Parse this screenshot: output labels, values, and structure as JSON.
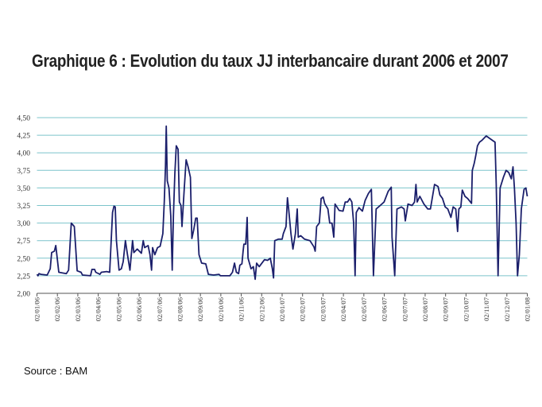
{
  "chart_data": {
    "type": "line",
    "title": "Graphique 6 : Evolution du taux JJ interbancaire durant 2006 et 2007",
    "source": "Source : BAM",
    "xlabel": "",
    "ylabel": "",
    "ylim": [
      2.0,
      4.5
    ],
    "yticks": [
      "2,00",
      "2,25",
      "2,50",
      "2,75",
      "3,00",
      "3,25",
      "3,50",
      "3,75",
      "4,00",
      "4,25",
      "4,50"
    ],
    "ytick_values": [
      2.0,
      2.25,
      2.5,
      2.75,
      3.0,
      3.25,
      3.5,
      3.75,
      4.0,
      4.25,
      4.5
    ],
    "xticks": [
      "02/01/06",
      "02/02/06",
      "02/03/06",
      "02/04/06",
      "02/05/06",
      "02/06/06",
      "02/07/06",
      "02/08/06",
      "02/09/06",
      "02/10/06",
      "02/11/06",
      "02/12/06",
      "02/01/07",
      "02/02/07",
      "02/03/07",
      "02/04/07",
      "02/05/07",
      "02/06/07",
      "02/07/07",
      "02/08/07",
      "02/09/07",
      "02/10/07",
      "02/11/07",
      "02/12/07",
      "02/01/08"
    ],
    "x_unit": "months since 02/01/06",
    "xlim": [
      0,
      24
    ],
    "grid": "horizontal",
    "colors": {
      "line": "#1b1f6b",
      "grid": "#7cc4cb"
    },
    "series": [
      {
        "name": "Taux JJ interbancaire",
        "x": [
          0,
          0.05,
          0.1,
          0.2,
          0.5,
          0.65,
          0.72,
          0.85,
          0.92,
          1.07,
          1.44,
          1.55,
          1.68,
          1.83,
          1.97,
          2.16,
          2.23,
          2.62,
          2.69,
          2.82,
          2.88,
          3.08,
          3.15,
          3.41,
          3.56,
          3.7,
          3.77,
          3.83,
          3.89,
          4.02,
          4.13,
          4.22,
          4.33,
          4.43,
          4.55,
          4.68,
          4.74,
          4.91,
          5.11,
          5.2,
          5.27,
          5.44,
          5.53,
          5.61,
          5.66,
          5.77,
          5.9,
          6.03,
          6.16,
          6.23,
          6.29,
          6.33,
          6.38,
          6.46,
          6.55,
          6.62,
          6.68,
          6.75,
          6.82,
          6.91,
          6.97,
          7.05,
          7.1,
          7.21,
          7.3,
          7.4,
          7.51,
          7.58,
          7.67,
          7.77,
          7.84,
          7.93,
          8.06,
          8.26,
          8.39,
          8.65,
          8.91,
          8.98,
          9.44,
          9.57,
          9.67,
          9.76,
          9.87,
          9.93,
          10.03,
          10.09,
          10.13,
          10.22,
          10.29,
          10.33,
          10.48,
          10.59,
          10.68,
          10.75,
          10.88,
          11.14,
          11.29,
          11.42,
          11.52,
          11.58,
          11.64,
          11.81,
          12.0,
          12.06,
          12.19,
          12.26,
          12.32,
          12.43,
          12.53,
          12.65,
          12.74,
          12.79,
          12.91,
          13.1,
          13.36,
          13.56,
          13.62,
          13.69,
          13.82,
          13.91,
          14.01,
          14.08,
          14.24,
          14.33,
          14.44,
          14.53,
          14.59,
          14.79,
          14.98,
          15.09,
          15.2,
          15.31,
          15.41,
          15.5,
          15.57,
          15.63,
          15.76,
          15.93,
          16.06,
          16.22,
          16.37,
          16.47,
          16.6,
          16.8,
          16.99,
          17.19,
          17.34,
          17.38,
          17.51,
          17.62,
          17.84,
          17.97,
          18.03,
          18.16,
          18.36,
          18.48,
          18.55,
          18.61,
          18.74,
          18.94,
          19.13,
          19.26,
          19.46,
          19.63,
          19.72,
          19.85,
          19.98,
          20.11,
          20.26,
          20.37,
          20.5,
          20.59,
          20.65,
          20.75,
          20.82,
          20.95,
          21.08,
          21.27,
          21.31,
          21.4,
          21.47,
          21.56,
          21.66,
          21.79,
          21.99,
          22.18,
          22.42,
          22.48,
          22.57,
          22.67,
          22.83,
          22.96,
          23.09,
          23.22,
          23.3,
          23.37,
          23.45,
          23.52,
          23.61,
          23.71,
          23.84,
          23.93,
          24.04
        ],
        "y": [
          2.27,
          2.25,
          2.28,
          2.27,
          2.26,
          2.35,
          2.58,
          2.6,
          2.68,
          2.3,
          2.28,
          2.33,
          3.0,
          2.95,
          2.32,
          2.3,
          2.26,
          2.25,
          2.34,
          2.34,
          2.3,
          2.27,
          2.3,
          2.31,
          2.3,
          3.15,
          3.24,
          3.23,
          2.75,
          2.33,
          2.35,
          2.45,
          2.75,
          2.55,
          2.33,
          2.75,
          2.58,
          2.63,
          2.57,
          2.75,
          2.65,
          2.68,
          2.55,
          2.33,
          2.65,
          2.55,
          2.65,
          2.67,
          2.85,
          3.3,
          3.8,
          4.38,
          3.6,
          3.5,
          3.1,
          2.33,
          3.1,
          3.7,
          4.1,
          4.05,
          3.3,
          3.25,
          2.95,
          3.5,
          3.9,
          3.8,
          3.65,
          2.78,
          2.9,
          3.07,
          3.07,
          2.55,
          2.43,
          2.42,
          2.27,
          2.26,
          2.27,
          2.25,
          2.25,
          2.3,
          2.43,
          2.3,
          2.28,
          2.4,
          2.42,
          2.6,
          2.7,
          2.7,
          3.08,
          2.5,
          2.35,
          2.38,
          2.2,
          2.43,
          2.38,
          2.48,
          2.47,
          2.5,
          2.35,
          2.22,
          2.75,
          2.77,
          2.77,
          2.85,
          2.95,
          3.36,
          3.2,
          2.85,
          2.63,
          2.85,
          3.2,
          2.8,
          2.82,
          2.77,
          2.75,
          2.66,
          2.6,
          2.95,
          3.0,
          3.35,
          3.37,
          3.28,
          3.2,
          3.0,
          3.0,
          2.8,
          3.27,
          3.18,
          3.17,
          3.3,
          3.3,
          3.35,
          3.3,
          3.0,
          2.25,
          3.15,
          3.22,
          3.17,
          3.32,
          3.42,
          3.48,
          2.25,
          3.2,
          3.25,
          3.3,
          3.45,
          3.51,
          2.8,
          2.25,
          3.2,
          3.23,
          3.2,
          3.03,
          3.27,
          3.25,
          3.3,
          3.55,
          3.3,
          3.38,
          3.27,
          3.2,
          3.2,
          3.55,
          3.52,
          3.4,
          3.35,
          3.23,
          3.2,
          3.08,
          3.23,
          3.2,
          2.88,
          3.2,
          3.23,
          3.47,
          3.38,
          3.35,
          3.28,
          3.75,
          3.85,
          3.95,
          4.1,
          4.15,
          4.18,
          4.24,
          4.2,
          4.15,
          3.55,
          2.25,
          3.5,
          3.65,
          3.75,
          3.72,
          3.63,
          3.8,
          3.5,
          3.0,
          2.25,
          2.55,
          3.2,
          3.48,
          3.5,
          3.38
        ]
      }
    ]
  }
}
